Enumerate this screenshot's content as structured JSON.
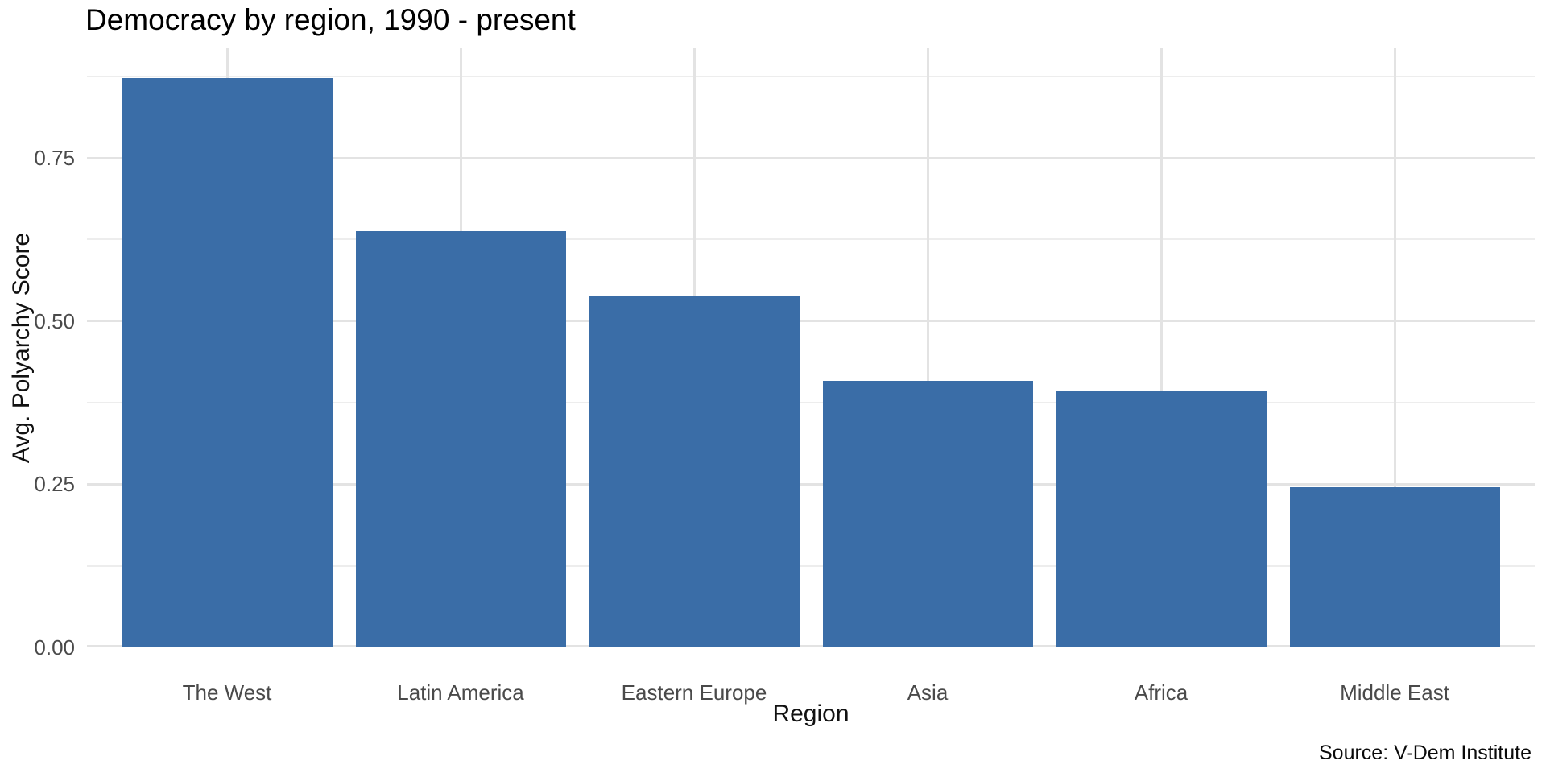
{
  "chart_data": {
    "type": "bar",
    "title": "Democracy by region, 1990 - present",
    "xlabel": "Region",
    "ylabel": "Avg. Polyarchy Score",
    "caption": "Source: V-Dem Institute",
    "categories": [
      "The West",
      "Latin America",
      "Eastern Europe",
      "Asia",
      "Africa",
      "Middle East"
    ],
    "values": [
      0.872,
      0.638,
      0.539,
      0.408,
      0.394,
      0.245
    ],
    "ylim": [
      0,
      0.918
    ],
    "yticks": [
      {
        "value": 0.0,
        "label": "0.00"
      },
      {
        "value": 0.25,
        "label": "0.25"
      },
      {
        "value": 0.5,
        "label": "0.50"
      },
      {
        "value": 0.75,
        "label": "0.75"
      }
    ],
    "yticks_minor": [
      0.125,
      0.375,
      0.625,
      0.875
    ],
    "legend_position": "none",
    "grid": {
      "horizontal_major": true,
      "horizontal_minor": true,
      "vertical_at_categories": true
    },
    "bar_color": "#3A6DA7",
    "bar_rel_width": 0.9
  },
  "colors": {
    "background": "#FFFFFF",
    "bar": "#3A6DA7",
    "grid_major": "#E3E3E3",
    "grid_minor": "#EDEDED",
    "axis_text": "#4A4A4A",
    "axis_title": "#111111",
    "title_text": "#000000"
  }
}
